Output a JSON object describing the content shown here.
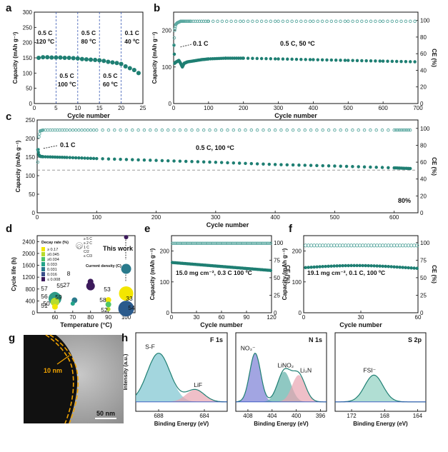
{
  "figure": {
    "panel_letters": [
      "a",
      "b",
      "c",
      "d",
      "e",
      "f",
      "g",
      "h"
    ]
  },
  "colors": {
    "teal": "#1f7f73",
    "teal_light": "#5aa8a0",
    "dash_blue": "#3b5bb5",
    "ref_gray": "#9a9a9a",
    "nf_fill": "#7b7fd6",
    "lino2_fill": "#5fb0a8",
    "li3n_fill": "#e8a4b0",
    "sf_fill": "#7cc4d0",
    "lif_fill": "#e8a4b0",
    "fsi_fill": "#8fd0c0",
    "orange": "#f3a400"
  },
  "chart_data": [
    {
      "id": "a",
      "type": "scatter",
      "xlabel": "Cycle number",
      "ylabel": "Capacity (mAh g⁻¹)",
      "xlim": [
        0,
        25
      ],
      "ylim": [
        0,
        300
      ],
      "xticks": [
        0,
        5,
        10,
        15,
        20,
        25
      ],
      "yticks": [
        0,
        50,
        100,
        150,
        200,
        250,
        300
      ],
      "dividers": [
        5,
        10,
        15,
        20
      ],
      "segment_labels": [
        {
          "rate": "0.5 C",
          "temp": "120 ºC"
        },
        {
          "rate": "0.5 C",
          "temp": "100 ºC"
        },
        {
          "rate": "0.5 C",
          "temp": "80 ºC"
        },
        {
          "rate": "0.5 C",
          "temp": "60 ºC"
        },
        {
          "rate": "0.1 C",
          "temp": "40 ºC"
        }
      ],
      "x": [
        1,
        2,
        3,
        4,
        5,
        6,
        7,
        8,
        9,
        10,
        11,
        12,
        13,
        14,
        15,
        16,
        17,
        18,
        19,
        20,
        21,
        22,
        23,
        24
      ],
      "y": [
        150,
        152,
        152,
        151,
        151,
        151,
        150,
        150,
        149,
        148,
        146,
        145,
        144,
        143,
        142,
        140,
        137,
        135,
        133,
        130,
        122,
        116,
        110,
        100
      ]
    },
    {
      "id": "b",
      "type": "scatter",
      "xlabel": "Cycle number",
      "ylabel": "Capacity (mAh g⁻¹)",
      "y2label": "CE (%)",
      "xlim": [
        0,
        700
      ],
      "ylim": [
        0,
        250
      ],
      "y2lim": [
        0,
        110
      ],
      "xticks": [
        0,
        100,
        200,
        300,
        400,
        500,
        600,
        700
      ],
      "yticks": [
        0,
        100,
        200
      ],
      "y2ticks": [
        0,
        20,
        40,
        60,
        80,
        100
      ],
      "annotations": [
        "0.1 C",
        "0.5 C, 50 ºC"
      ],
      "capacity": {
        "x": [
          1,
          3,
          6,
          10,
          15,
          20,
          25,
          30,
          40,
          60,
          80,
          100,
          150,
          200,
          300,
          400,
          500,
          600,
          700
        ],
        "y": [
          160,
          110,
          113,
          115,
          118,
          110,
          100,
          110,
          114,
          117,
          120,
          122,
          124,
          124,
          122,
          120,
          118,
          116,
          114
        ]
      },
      "ce": {
        "x": [
          1,
          3,
          6,
          10,
          20,
          30,
          50,
          100,
          200,
          300,
          400,
          500,
          600,
          700
        ],
        "y": [
          70,
          88,
          95,
          97,
          99,
          99,
          99,
          99,
          99,
          99,
          99,
          99,
          99,
          99
        ]
      }
    },
    {
      "id": "c",
      "type": "scatter",
      "xlabel": "Cycle number",
      "ylabel": "Capacity (mAh g⁻¹)",
      "y2label": "CE (%)",
      "xlim": [
        0,
        640
      ],
      "ylim": [
        0,
        250
      ],
      "y2lim": [
        0,
        110
      ],
      "xticks": [
        0,
        100,
        200,
        300,
        400,
        500,
        600
      ],
      "yticks": [
        0,
        50,
        100,
        150,
        200,
        250
      ],
      "y2ticks": [
        0,
        20,
        40,
        60,
        80,
        100
      ],
      "annotations": [
        "0.1 C",
        "0.5 C, 100 ºC",
        "80%"
      ],
      "reference_line": 115,
      "capacity": {
        "x": [
          1,
          3,
          5,
          10,
          50,
          100,
          200,
          300,
          400,
          500,
          600,
          630
        ],
        "y": [
          170,
          156,
          152,
          151,
          149,
          146,
          141,
          136,
          130,
          126,
          121,
          119
        ]
      },
      "ce": {
        "x": [
          1,
          3,
          5,
          10,
          50,
          100,
          200,
          300,
          400,
          500,
          600,
          630
        ],
        "y": [
          60,
          90,
          97,
          98,
          98,
          98,
          98,
          98,
          98,
          98,
          98,
          98
        ]
      }
    },
    {
      "id": "d",
      "type": "scatter",
      "xlabel": "Temperature (°C)",
      "ylabel": "Cycle life (h)",
      "xlim": [
        50,
        105
      ],
      "ylim": [
        0,
        2600
      ],
      "xticks": [
        60,
        70,
        80,
        90,
        100
      ],
      "yticks": [
        0,
        400,
        800,
        1200,
        1600,
        2000,
        2400
      ],
      "legend_decay_title": "Decay rate (%)",
      "legend_decay": [
        "≥ 0.17",
        "≥0.045",
        "≥0.034",
        "0.033",
        "0.031",
        "0.016",
        "≤ 0.008"
      ],
      "legend_decay_colors": [
        "#f3e600",
        "#b7dc2c",
        "#4fc46a",
        "#23a489",
        "#2a7a8c",
        "#3b4f8a",
        "#3c1a5b"
      ],
      "legend_current_title": "Current density (C)",
      "legend_current": [
        "≥ 5 C",
        "≥ 2 C",
        "1 C",
        "C/2",
        "≤ C/3"
      ],
      "this_work_label": "This work",
      "points": [
        {
          "label": "57",
          "x": 60,
          "y": 560,
          "size": 6,
          "color": "#23a489"
        },
        {
          "label": "55",
          "x": 60,
          "y": 480,
          "size": 9,
          "color": "#2e9a86"
        },
        {
          "label": "56",
          "x": 60,
          "y": 360,
          "size": 6,
          "color": "#b7dc2c"
        },
        {
          "label": "51",
          "x": 60,
          "y": 200,
          "size": 4,
          "color": "#f3e600"
        },
        {
          "label": "59",
          "x": 71,
          "y": 420,
          "size": 4,
          "color": "#2a7a8c"
        },
        {
          "label": "50",
          "x": 70,
          "y": 310,
          "size": 3,
          "color": "#23a489"
        },
        {
          "label": "8",
          "x": 80,
          "y": 1050,
          "size": 4,
          "color": "#3c1a5b"
        },
        {
          "label": "27",
          "x": 80,
          "y": 900,
          "size": 6,
          "color": "#3c1a5b"
        },
        {
          "label": "53",
          "x": 90,
          "y": 430,
          "size": 4,
          "color": "#f3e600"
        },
        {
          "label": "58",
          "x": 90,
          "y": 280,
          "size": 4,
          "color": "#4fc46a"
        },
        {
          "label": "52",
          "x": 90,
          "y": 120,
          "size": 3,
          "color": "#b7dc2c"
        },
        {
          "label": "",
          "x": 100,
          "y": 2550,
          "size": 3,
          "color": "#3c1a5b"
        },
        {
          "label": "",
          "x": 100,
          "y": 1480,
          "size": 7,
          "color": "#2a7a8c"
        },
        {
          "label": "33",
          "x": 100,
          "y": 650,
          "size": 10,
          "color": "#f3e600"
        },
        {
          "label": "54",
          "x": 100,
          "y": 140,
          "size": 11,
          "color": "#2a5a8c"
        }
      ]
    },
    {
      "id": "e",
      "type": "scatter",
      "xlabel": "Cycle number",
      "ylabel": "Capacity (mAh g⁻¹)",
      "y2label": "CE (%)",
      "xlim": [
        0,
        120
      ],
      "ylim": [
        0,
        250
      ],
      "y2lim": [
        0,
        110
      ],
      "xticks": [
        0,
        30,
        60,
        90,
        120
      ],
      "yticks": [
        0,
        100,
        200
      ],
      "y2ticks": [
        0,
        25,
        50,
        75,
        100
      ],
      "annotation": "15.0 mg cm⁻², 0.3 C 100 ºC",
      "capacity": {
        "x": [
          1,
          10,
          20,
          30,
          40,
          50,
          60,
          70,
          80,
          90,
          100,
          110,
          120
        ],
        "y": [
          163,
          160,
          158,
          156,
          155,
          153,
          151,
          149,
          147,
          145,
          143,
          140,
          137
        ]
      },
      "ce": {
        "x": [
          1,
          10,
          20,
          30,
          40,
          50,
          60,
          70,
          80,
          90,
          100,
          110,
          120
        ],
        "y": [
          99,
          99,
          99,
          99,
          99,
          99,
          99,
          99,
          99,
          99,
          99,
          99,
          99
        ]
      }
    },
    {
      "id": "f",
      "type": "scatter",
      "xlabel": "Cycle number",
      "ylabel": "Capacity (mAh g⁻¹)",
      "y2label": "CE (%)",
      "xlim": [
        0,
        60
      ],
      "ylim": [
        0,
        250
      ],
      "y2lim": [
        0,
        110
      ],
      "xticks": [
        0,
        30,
        60
      ],
      "yticks": [
        0,
        100,
        200
      ],
      "y2ticks": [
        0,
        25,
        50,
        75,
        100
      ],
      "annotation": "19.1 mg cm⁻², 0.1 C, 100 ºC",
      "capacity": {
        "x": [
          1,
          5,
          10,
          15,
          20,
          25,
          30,
          35,
          40,
          45,
          50,
          55,
          60
        ],
        "y": [
          146,
          148,
          150,
          152,
          153,
          153,
          152,
          151,
          149,
          147,
          145,
          143,
          140
        ]
      },
      "ce": {
        "x": [
          1,
          5,
          10,
          15,
          20,
          25,
          30,
          35,
          40,
          45,
          50,
          55,
          60
        ],
        "y": [
          95,
          96,
          96,
          96,
          96,
          96,
          96,
          96,
          96,
          96,
          96,
          96,
          96
        ]
      }
    },
    {
      "id": "g",
      "type": "image",
      "labels": [
        "10 nm",
        "50 nm"
      ]
    },
    {
      "id": "h",
      "type": "line",
      "ylabel": "Intensity (a.u.)",
      "xlabel": "Binding Energy (eV)",
      "subpanels": [
        {
          "title": "F 1s",
          "xlim": [
            690,
            682
          ],
          "xticks": [
            688,
            684
          ],
          "peaks": [
            {
              "label": "S-F",
              "center": 688.0,
              "height": 1.0,
              "width": 1.0
            },
            {
              "label": "LiF",
              "center": 684.8,
              "height": 0.25,
              "width": 0.8
            }
          ]
        },
        {
          "title": "N 1s",
          "xlim": [
            410,
            395
          ],
          "xticks": [
            408,
            404,
            400,
            396
          ],
          "peaks": [
            {
              "label": "NO₃⁻",
              "center": 406.8,
              "height": 1.0,
              "width": 0.9
            },
            {
              "label": "LiNO₂",
              "center": 402.0,
              "height": 0.62,
              "width": 1.1
            },
            {
              "label": "Li₃N",
              "center": 399.6,
              "height": 0.55,
              "width": 1.1
            }
          ]
        },
        {
          "title": "S 2p",
          "xlim": [
            174,
            163
          ],
          "xticks": [
            172,
            168,
            164
          ],
          "peaks": [
            {
              "label": "FSI⁻",
              "center": 169.3,
              "height": 0.55,
              "width": 1.1
            }
          ]
        }
      ]
    }
  ]
}
